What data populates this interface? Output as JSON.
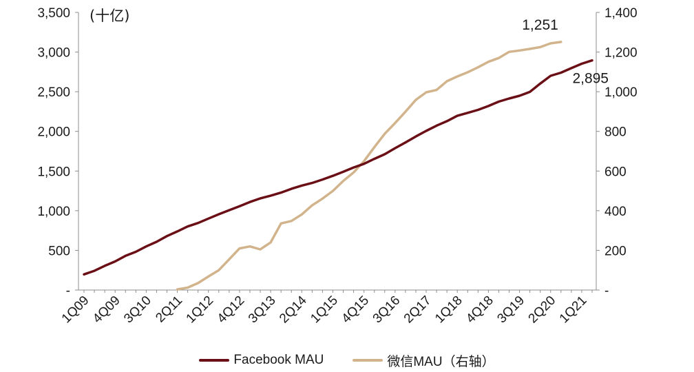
{
  "chart_data": {
    "type": "line",
    "unit_label": "(十亿)",
    "x_tick_labels": [
      "1Q09",
      "4Q09",
      "3Q10",
      "2Q11",
      "1Q12",
      "4Q12",
      "3Q13",
      "2Q14",
      "1Q15",
      "4Q15",
      "3Q16",
      "2Q17",
      "1Q18",
      "4Q18",
      "3Q19",
      "2Q20",
      "1Q21"
    ],
    "y_left": {
      "min": 0,
      "max": 3500,
      "ticks": [
        "-",
        "500",
        "1,000",
        "1,500",
        "2,000",
        "2,500",
        "3,000",
        "3,500"
      ]
    },
    "y_right": {
      "min": 0,
      "max": 1400,
      "ticks": [
        "-",
        "200",
        "400",
        "600",
        "800",
        "1,000",
        "1,200",
        "1,400"
      ]
    },
    "grid": false,
    "legend_position": "bottom",
    "series": [
      {
        "name": "Facebook MAU",
        "axis": "left",
        "color": "#6b0f16",
        "start_index": 0,
        "end_label": "2,895",
        "values": [
          197,
          242,
          305,
          360,
          431,
          482,
          550,
          608,
          680,
          739,
          802,
          845,
          901,
          955,
          1007,
          1056,
          1110,
          1155,
          1189,
          1228,
          1276,
          1317,
          1350,
          1393,
          1440,
          1490,
          1545,
          1591,
          1654,
          1712,
          1788,
          1860,
          1936,
          2006,
          2072,
          2129,
          2196,
          2234,
          2271,
          2320,
          2375,
          2414,
          2449,
          2498,
          2603,
          2701,
          2740,
          2797,
          2853,
          2895
        ]
      },
      {
        "name": "微信MAU（右轴）",
        "axis": "right",
        "color": "#d2b48c",
        "start_index": 9,
        "end_label": "1,251",
        "values": [
          3,
          12,
          35,
          68,
          100,
          155,
          210,
          220,
          205,
          240,
          336,
          348,
          381,
          427,
          461,
          500,
          550,
          593,
          650,
          720,
          788,
          842,
          899,
          959,
          997,
          1009,
          1053,
          1077,
          1098,
          1123,
          1151,
          1170,
          1201,
          1208,
          1216,
          1225,
          1244,
          1251
        ]
      }
    ]
  }
}
